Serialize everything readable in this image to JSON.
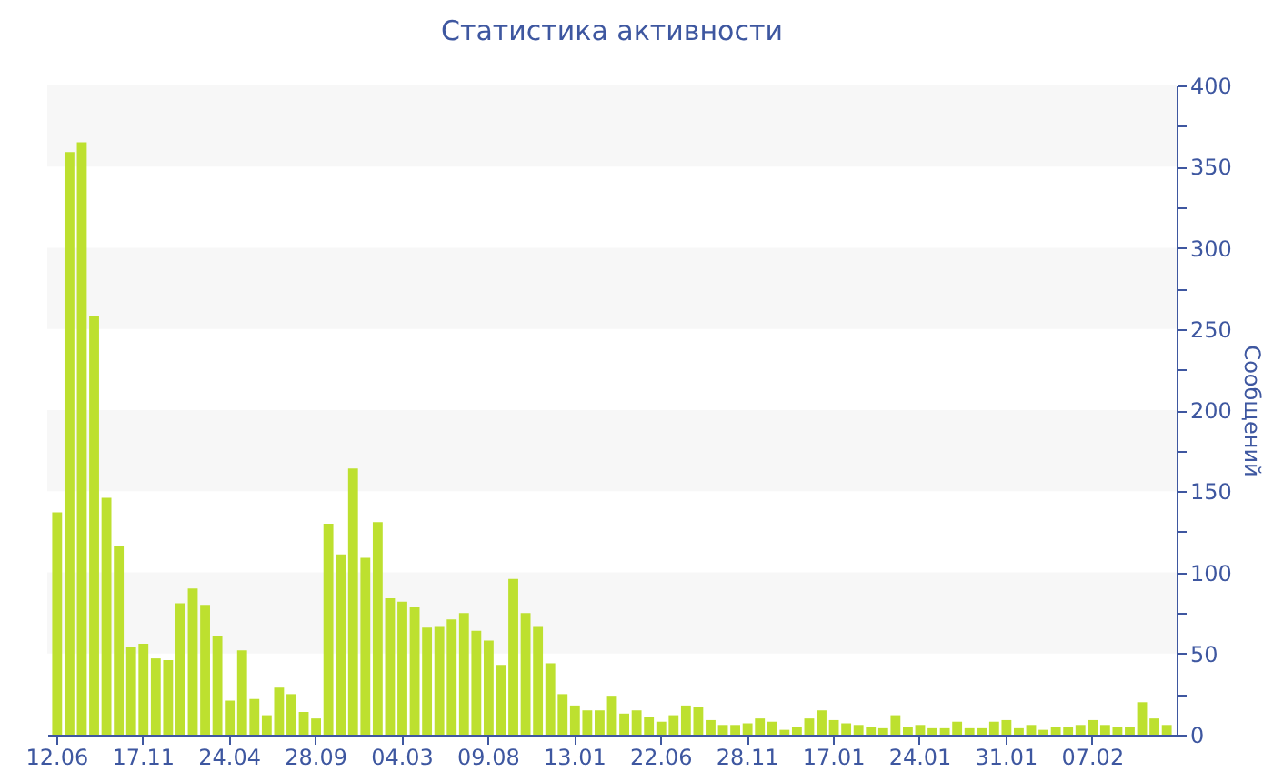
{
  "chart_data": {
    "type": "bar",
    "title": "Статистика активности",
    "ylabel": "Сообщений",
    "categories": [
      "12.06",
      null,
      null,
      null,
      null,
      null,
      null,
      "17.11",
      null,
      null,
      null,
      null,
      null,
      null,
      "24.04",
      null,
      null,
      null,
      null,
      null,
      null,
      "28.09",
      null,
      null,
      null,
      null,
      null,
      null,
      "04.03",
      null,
      null,
      null,
      null,
      null,
      null,
      "09.08",
      null,
      null,
      null,
      null,
      null,
      null,
      "13.01",
      null,
      null,
      null,
      null,
      null,
      null,
      "22.06",
      null,
      null,
      null,
      null,
      null,
      null,
      "28.11",
      null,
      null,
      null,
      null,
      null,
      null,
      "17.01",
      null,
      null,
      null,
      null,
      null,
      null,
      "24.01",
      null,
      null,
      null,
      null,
      null,
      null,
      "31.01",
      null,
      null,
      null,
      null,
      null,
      null,
      "07.02",
      null,
      null,
      null,
      null,
      null,
      null
    ],
    "values": [
      137,
      359,
      365,
      258,
      146,
      116,
      54,
      56,
      47,
      46,
      81,
      90,
      80,
      61,
      21,
      52,
      22,
      12,
      29,
      25,
      14,
      10,
      130,
      111,
      164,
      109,
      131,
      84,
      82,
      79,
      66,
      67,
      71,
      75,
      64,
      58,
      43,
      96,
      75,
      67,
      44,
      25,
      18,
      15,
      15,
      24,
      13,
      15,
      11,
      8,
      12,
      18,
      17,
      9,
      6,
      6,
      7,
      10,
      8,
      3,
      5,
      10,
      15,
      9,
      7,
      6,
      5,
      4,
      12,
      5,
      6,
      4,
      4,
      8,
      4,
      4,
      8,
      9,
      4,
      6,
      3,
      5,
      5,
      6,
      9,
      6,
      5,
      5,
      20,
      10,
      6
    ],
    "color": "#bde02f",
    "ylim": [
      0,
      400
    ],
    "yticks": [
      0,
      {
        "value": 25,
        "label": null
      },
      50,
      {
        "value": 75,
        "label": null
      },
      100,
      {
        "value": 125,
        "label": null
      },
      150,
      {
        "value": 175,
        "label": null
      },
      200,
      {
        "value": 225,
        "label": null
      },
      250,
      {
        "value": 275,
        "label": null
      },
      300,
      {
        "value": 325,
        "label": null
      },
      350,
      {
        "value": 375,
        "label": null
      },
      400
    ],
    "bands": [
      {
        "axis": "y",
        "from": 50,
        "to": 100,
        "color": "#f7f7f7"
      },
      {
        "axis": "y",
        "from": 150,
        "to": 200,
        "color": "#f7f7f7"
      },
      {
        "axis": "y",
        "from": 250,
        "to": 300,
        "color": "#f7f7f7"
      },
      {
        "axis": "y",
        "from": 350,
        "to": 400,
        "color": "#f7f7f7"
      }
    ],
    "grid": false
  }
}
